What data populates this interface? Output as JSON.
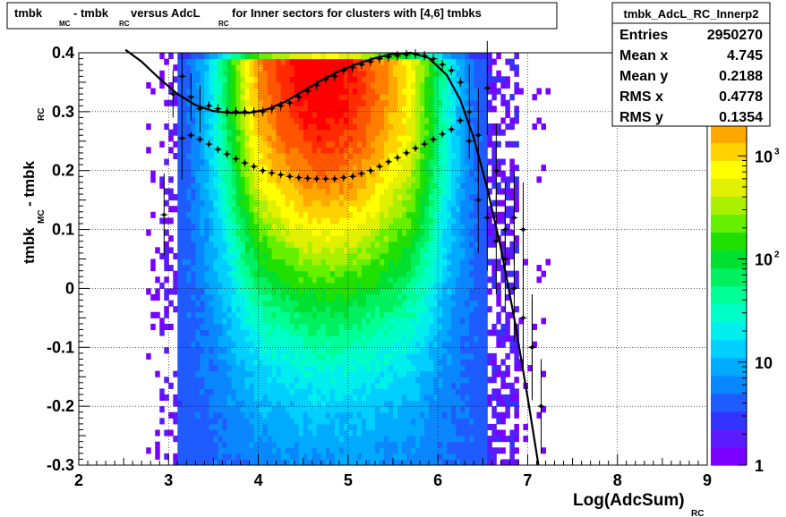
{
  "chart_data": {
    "type": "heatmap",
    "title": {
      "parts": [
        {
          "text": "tmbk",
          "sub": "MC"
        },
        {
          "text": " - tmbk",
          "sub": "RC"
        },
        {
          "text": " versus AdcL",
          "sub": "RC"
        },
        {
          "text": " for Inner sectors for clusters with [4,6] tmbks",
          "sub": ""
        }
      ]
    },
    "xlabel": {
      "main": "Log(AdcSum)",
      "sub": "RC"
    },
    "ylabel": {
      "main1": "tmbk",
      "sub1": "MC",
      "main2": " - tmbk",
      "sub2": "RC"
    },
    "xlim": [
      2,
      9
    ],
    "ylim": [
      -0.3,
      0.4
    ],
    "x_ticks": [
      "2",
      "3",
      "4",
      "5",
      "6",
      "7",
      "8",
      "9"
    ],
    "y_ticks": [
      "-0.3",
      "-0.2",
      "-0.1",
      "0",
      "0.1",
      "0.2",
      "0.3",
      "0.4"
    ],
    "grid": true,
    "z_scale": "log",
    "z_range": [
      1,
      10000
    ],
    "z_ticks": [
      {
        "base": "1",
        "exp": ""
      },
      {
        "base": "10",
        "exp": ""
      },
      {
        "base": "10",
        "exp": "2"
      },
      {
        "base": "10",
        "exp": "3"
      }
    ],
    "z_colors": [
      "#7a00ff",
      "#5a1cff",
      "#3333ff",
      "#1f5cff",
      "#0a86ff",
      "#00aaff",
      "#00cfff",
      "#00eeee",
      "#00ffc8",
      "#00ff96",
      "#00f060",
      "#00e030",
      "#20e000",
      "#66f000",
      "#aaf000",
      "#e0f000",
      "#ffff00",
      "#ffd200",
      "#ffa800",
      "#ff7e00",
      "#ff5400",
      "#ff2a00",
      "#ff0000"
    ],
    "stats": {
      "name": "tmbk_AdcL_RC_Innerp2",
      "rows": [
        {
          "label": "Entries",
          "value": "2950270"
        },
        {
          "label": "Mean x",
          "value": "4.745"
        },
        {
          "label": "Mean y",
          "value": "0.2188"
        },
        {
          "label": "RMS x",
          "value": "0.4778"
        },
        {
          "label": "RMS y",
          "value": "0.1354"
        }
      ]
    },
    "fit_curve": {
      "x": [
        2.52,
        2.7,
        2.9,
        3.1,
        3.3,
        3.5,
        3.7,
        3.9,
        4.1,
        4.3,
        4.5,
        4.7,
        4.9,
        5.1,
        5.3,
        5.5,
        5.7,
        5.9,
        6.1,
        6.25,
        6.4,
        6.55,
        6.7,
        6.85,
        7.0,
        7.12
      ],
      "y": [
        0.405,
        0.385,
        0.356,
        0.33,
        0.311,
        0.301,
        0.298,
        0.298,
        0.304,
        0.317,
        0.335,
        0.353,
        0.369,
        0.381,
        0.391,
        0.398,
        0.4,
        0.391,
        0.362,
        0.32,
        0.255,
        0.17,
        0.07,
        -0.05,
        -0.185,
        -0.3
      ]
    },
    "profile_upper": {
      "x": [
        3.05,
        3.15,
        3.25,
        3.35,
        3.45,
        3.55,
        3.65,
        3.75,
        3.85,
        3.95,
        4.05,
        4.15,
        4.25,
        4.35,
        4.45,
        4.55,
        4.65,
        4.75,
        4.85,
        4.95,
        5.05,
        5.15,
        5.25,
        5.35,
        5.45,
        5.55,
        5.65,
        5.75,
        5.85,
        5.95,
        6.05,
        6.15,
        6.25,
        6.35,
        6.45,
        6.55,
        6.65,
        6.75,
        6.85,
        6.95,
        7.05,
        7.15
      ],
      "y": [
        0.33,
        0.36,
        0.325,
        0.305,
        0.31,
        0.305,
        0.3,
        0.3,
        0.3,
        0.3,
        0.3,
        0.305,
        0.31,
        0.315,
        0.325,
        0.335,
        0.345,
        0.355,
        0.36,
        0.37,
        0.375,
        0.38,
        0.385,
        0.39,
        0.393,
        0.395,
        0.397,
        0.398,
        0.395,
        0.39,
        0.38,
        0.37,
        0.35,
        0.3,
        0.26,
        0.34,
        0.2,
        0.1,
        0.12,
        0.1,
        -0.1,
        -0.2
      ]
    },
    "profile_lower": {
      "x": [
        2.95,
        3.15,
        3.25,
        3.35,
        3.45,
        3.55,
        3.65,
        3.75,
        3.85,
        3.95,
        4.05,
        4.15,
        4.25,
        4.35,
        4.45,
        4.55,
        4.65,
        4.75,
        4.85,
        4.95,
        5.05,
        5.15,
        5.25,
        5.35,
        5.45,
        5.55,
        5.65,
        5.75,
        5.85,
        5.95,
        6.05,
        6.15,
        6.25,
        6.35,
        6.45,
        6.55,
        6.65,
        6.75,
        6.85,
        6.95,
        7.05
      ],
      "y": [
        0.125,
        0.255,
        0.26,
        0.253,
        0.245,
        0.236,
        0.228,
        0.22,
        0.213,
        0.207,
        0.2,
        0.196,
        0.193,
        0.19,
        0.188,
        0.187,
        0.186,
        0.186,
        0.186,
        0.188,
        0.19,
        0.195,
        0.2,
        0.207,
        0.215,
        0.222,
        0.23,
        0.238,
        0.245,
        0.253,
        0.262,
        0.27,
        0.285,
        0.25,
        0.15,
        0.12,
        0.08,
        0.05,
        0.0,
        -0.05,
        -0.1
      ]
    }
  }
}
